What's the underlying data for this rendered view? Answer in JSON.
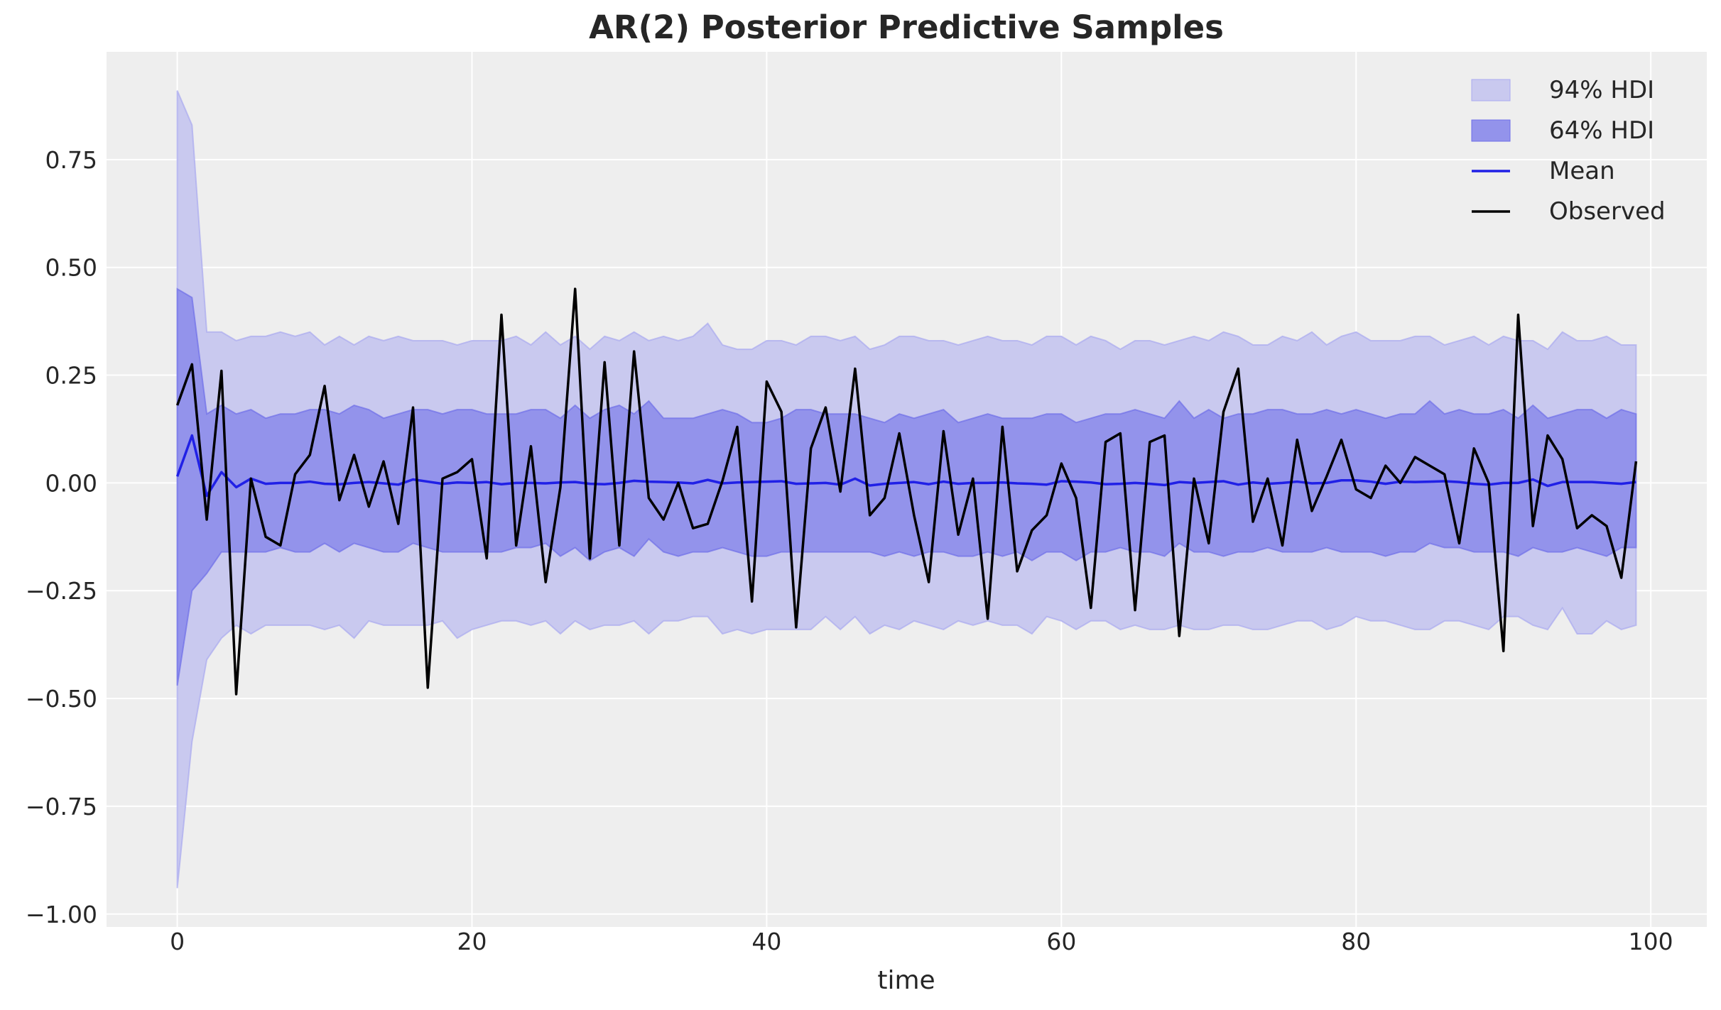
{
  "chart_data": {
    "type": "line",
    "title": "AR(2) Posterior Predictive Samples",
    "xlabel": "time",
    "ylabel": "",
    "xlim": [
      -4.8,
      103.8
    ],
    "ylim": [
      -1.03,
      1.0
    ],
    "grid": true,
    "legend_placement": "top-right",
    "x_ticks": [
      0,
      20,
      40,
      60,
      80,
      100
    ],
    "x_tick_labels": [
      "0",
      "20",
      "40",
      "60",
      "80",
      "100"
    ],
    "y_ticks": [
      -1.0,
      -0.75,
      -0.5,
      -0.25,
      0.0,
      0.25,
      0.5,
      0.75
    ],
    "y_tick_labels": [
      "−1.00",
      "−0.75",
      "−0.50",
      "−0.25",
      "0.00",
      "0.25",
      "0.50",
      "0.75"
    ],
    "legend": [
      "94% HDI",
      "64% HDI",
      "Mean",
      "Observed"
    ],
    "colors": {
      "hdi94": "#c9c9ef",
      "hdi94_edge": "#aaaaf0",
      "hdi64": "#9393eb",
      "hdi64_edge": "#6f6fe8",
      "mean": "#2020e6",
      "observed": "#000000",
      "background": "#eeeeee",
      "grid": "#ffffff"
    },
    "hdi94_upper": [
      0.91,
      0.83,
      0.35,
      0.35,
      0.33,
      0.34,
      0.34,
      0.35,
      0.34,
      0.35,
      0.32,
      0.34,
      0.32,
      0.34,
      0.33,
      0.34,
      0.33,
      0.33,
      0.33,
      0.32,
      0.33,
      0.33,
      0.33,
      0.34,
      0.32,
      0.35,
      0.32,
      0.34,
      0.31,
      0.34,
      0.33,
      0.35,
      0.33,
      0.34,
      0.33,
      0.34,
      0.37,
      0.32,
      0.31,
      0.31,
      0.33,
      0.33,
      0.32,
      0.34,
      0.34,
      0.33,
      0.34,
      0.31,
      0.32,
      0.34,
      0.34,
      0.33,
      0.33,
      0.32,
      0.33,
      0.34,
      0.33,
      0.33,
      0.32,
      0.34,
      0.34,
      0.32,
      0.34,
      0.33,
      0.31,
      0.33,
      0.33,
      0.32,
      0.33,
      0.34,
      0.33,
      0.35,
      0.34,
      0.32,
      0.32,
      0.34,
      0.33,
      0.35,
      0.32,
      0.34,
      0.35,
      0.33,
      0.33,
      0.33,
      0.34,
      0.34,
      0.32,
      0.33,
      0.34,
      0.32,
      0.34,
      0.33,
      0.33,
      0.31,
      0.35,
      0.33,
      0.33,
      0.34,
      0.32,
      0.32
    ],
    "hdi94_lower": [
      -0.94,
      -0.6,
      -0.41,
      -0.36,
      -0.33,
      -0.35,
      -0.33,
      -0.33,
      -0.33,
      -0.33,
      -0.34,
      -0.33,
      -0.36,
      -0.32,
      -0.33,
      -0.33,
      -0.33,
      -0.33,
      -0.32,
      -0.36,
      -0.34,
      -0.33,
      -0.32,
      -0.32,
      -0.33,
      -0.32,
      -0.35,
      -0.32,
      -0.34,
      -0.33,
      -0.33,
      -0.32,
      -0.35,
      -0.32,
      -0.32,
      -0.31,
      -0.31,
      -0.35,
      -0.34,
      -0.35,
      -0.34,
      -0.34,
      -0.34,
      -0.34,
      -0.31,
      -0.34,
      -0.31,
      -0.35,
      -0.33,
      -0.34,
      -0.32,
      -0.33,
      -0.34,
      -0.32,
      -0.33,
      -0.32,
      -0.33,
      -0.33,
      -0.35,
      -0.31,
      -0.32,
      -0.34,
      -0.32,
      -0.32,
      -0.34,
      -0.33,
      -0.34,
      -0.34,
      -0.33,
      -0.34,
      -0.34,
      -0.33,
      -0.33,
      -0.34,
      -0.34,
      -0.33,
      -0.32,
      -0.32,
      -0.34,
      -0.33,
      -0.31,
      -0.32,
      -0.32,
      -0.33,
      -0.34,
      -0.34,
      -0.32,
      -0.32,
      -0.33,
      -0.34,
      -0.31,
      -0.31,
      -0.33,
      -0.34,
      -0.29,
      -0.35,
      -0.35,
      -0.32,
      -0.34,
      -0.33
    ],
    "hdi64_upper": [
      0.45,
      0.43,
      0.16,
      0.18,
      0.16,
      0.17,
      0.15,
      0.16,
      0.16,
      0.17,
      0.17,
      0.16,
      0.18,
      0.17,
      0.15,
      0.16,
      0.17,
      0.17,
      0.16,
      0.17,
      0.17,
      0.16,
      0.16,
      0.16,
      0.17,
      0.17,
      0.15,
      0.18,
      0.15,
      0.17,
      0.18,
      0.16,
      0.19,
      0.15,
      0.15,
      0.15,
      0.16,
      0.17,
      0.16,
      0.14,
      0.14,
      0.15,
      0.17,
      0.17,
      0.16,
      0.16,
      0.16,
      0.15,
      0.14,
      0.16,
      0.15,
      0.16,
      0.17,
      0.14,
      0.15,
      0.16,
      0.15,
      0.15,
      0.15,
      0.16,
      0.16,
      0.14,
      0.15,
      0.16,
      0.16,
      0.17,
      0.16,
      0.15,
      0.19,
      0.15,
      0.17,
      0.15,
      0.16,
      0.16,
      0.17,
      0.17,
      0.16,
      0.16,
      0.17,
      0.16,
      0.17,
      0.16,
      0.15,
      0.16,
      0.16,
      0.19,
      0.16,
      0.17,
      0.16,
      0.16,
      0.17,
      0.15,
      0.18,
      0.15,
      0.16,
      0.17,
      0.17,
      0.15,
      0.17,
      0.16
    ],
    "hdi64_lower": [
      -0.47,
      -0.25,
      -0.21,
      -0.16,
      -0.16,
      -0.16,
      -0.16,
      -0.15,
      -0.16,
      -0.16,
      -0.14,
      -0.16,
      -0.14,
      -0.15,
      -0.16,
      -0.16,
      -0.14,
      -0.15,
      -0.16,
      -0.16,
      -0.16,
      -0.16,
      -0.16,
      -0.15,
      -0.15,
      -0.14,
      -0.17,
      -0.15,
      -0.18,
      -0.16,
      -0.15,
      -0.17,
      -0.13,
      -0.16,
      -0.17,
      -0.16,
      -0.16,
      -0.15,
      -0.16,
      -0.17,
      -0.17,
      -0.16,
      -0.16,
      -0.16,
      -0.16,
      -0.16,
      -0.16,
      -0.16,
      -0.17,
      -0.16,
      -0.17,
      -0.16,
      -0.16,
      -0.17,
      -0.17,
      -0.16,
      -0.17,
      -0.16,
      -0.18,
      -0.16,
      -0.16,
      -0.18,
      -0.16,
      -0.16,
      -0.15,
      -0.16,
      -0.16,
      -0.17,
      -0.14,
      -0.16,
      -0.16,
      -0.17,
      -0.16,
      -0.16,
      -0.15,
      -0.16,
      -0.16,
      -0.16,
      -0.15,
      -0.16,
      -0.16,
      -0.16,
      -0.17,
      -0.16,
      -0.16,
      -0.14,
      -0.15,
      -0.15,
      -0.16,
      -0.16,
      -0.16,
      -0.17,
      -0.15,
      -0.16,
      -0.16,
      -0.15,
      -0.16,
      -0.17,
      -0.15,
      -0.15
    ],
    "mean": [
      0.015,
      0.11,
      -0.03,
      0.025,
      -0.01,
      0.01,
      -0.002,
      0.0,
      0.0,
      0.003,
      -0.002,
      -0.003,
      0.0,
      0.002,
      -0.001,
      -0.004,
      0.008,
      0.003,
      -0.002,
      0.001,
      0.0,
      0.002,
      -0.003,
      0.0,
      0.0,
      -0.001,
      0.001,
      0.002,
      -0.002,
      -0.003,
      0.0,
      0.005,
      0.003,
      0.002,
      0.001,
      -0.001,
      0.007,
      -0.001,
      0.001,
      0.002,
      0.003,
      0.004,
      -0.002,
      -0.001,
      0.0,
      -0.004,
      0.01,
      -0.006,
      -0.002,
      0.0,
      0.002,
      -0.003,
      0.003,
      -0.002,
      0.0,
      0.0,
      0.001,
      -0.001,
      -0.002,
      -0.004,
      0.004,
      0.003,
      0.001,
      -0.003,
      -0.002,
      0.0,
      -0.002,
      -0.005,
      0.002,
      0.0,
      0.002,
      0.004,
      -0.004,
      0.001,
      -0.002,
      0.0,
      0.003,
      -0.001,
      0.0,
      0.006,
      0.006,
      0.003,
      -0.002,
      0.003,
      0.002,
      0.003,
      0.004,
      0.002,
      -0.002,
      -0.004,
      0.0,
      0.0,
      0.008,
      -0.007,
      0.002,
      0.002,
      0.002,
      0.0,
      -0.002,
      0.002
    ],
    "observed": [
      0.18,
      0.275,
      -0.085,
      0.26,
      -0.49,
      0.01,
      -0.125,
      -0.145,
      0.02,
      0.065,
      0.225,
      -0.04,
      0.065,
      -0.055,
      0.05,
      -0.095,
      0.175,
      -0.475,
      0.01,
      0.025,
      0.055,
      -0.175,
      0.39,
      -0.145,
      0.085,
      -0.23,
      -0.01,
      0.45,
      -0.175,
      0.28,
      -0.145,
      0.305,
      -0.035,
      -0.085,
      0.0,
      -0.105,
      -0.095,
      0.005,
      0.13,
      -0.275,
      0.235,
      0.165,
      -0.335,
      0.08,
      0.175,
      -0.02,
      0.265,
      -0.075,
      -0.035,
      0.115,
      -0.075,
      -0.23,
      0.12,
      -0.12,
      0.01,
      -0.315,
      0.13,
      -0.205,
      -0.11,
      -0.075,
      0.045,
      -0.035,
      -0.29,
      0.095,
      0.115,
      -0.295,
      0.095,
      0.11,
      -0.355,
      0.01,
      -0.14,
      0.165,
      0.265,
      -0.09,
      0.01,
      -0.145,
      0.1,
      -0.065,
      0.015,
      0.1,
      -0.015,
      -0.035,
      0.04,
      0.0,
      0.06,
      0.04,
      0.02,
      -0.14,
      0.08,
      0.0,
      -0.39,
      0.39,
      -0.1,
      0.11,
      0.055,
      -0.105,
      -0.075,
      -0.1,
      -0.22,
      0.05
    ]
  }
}
